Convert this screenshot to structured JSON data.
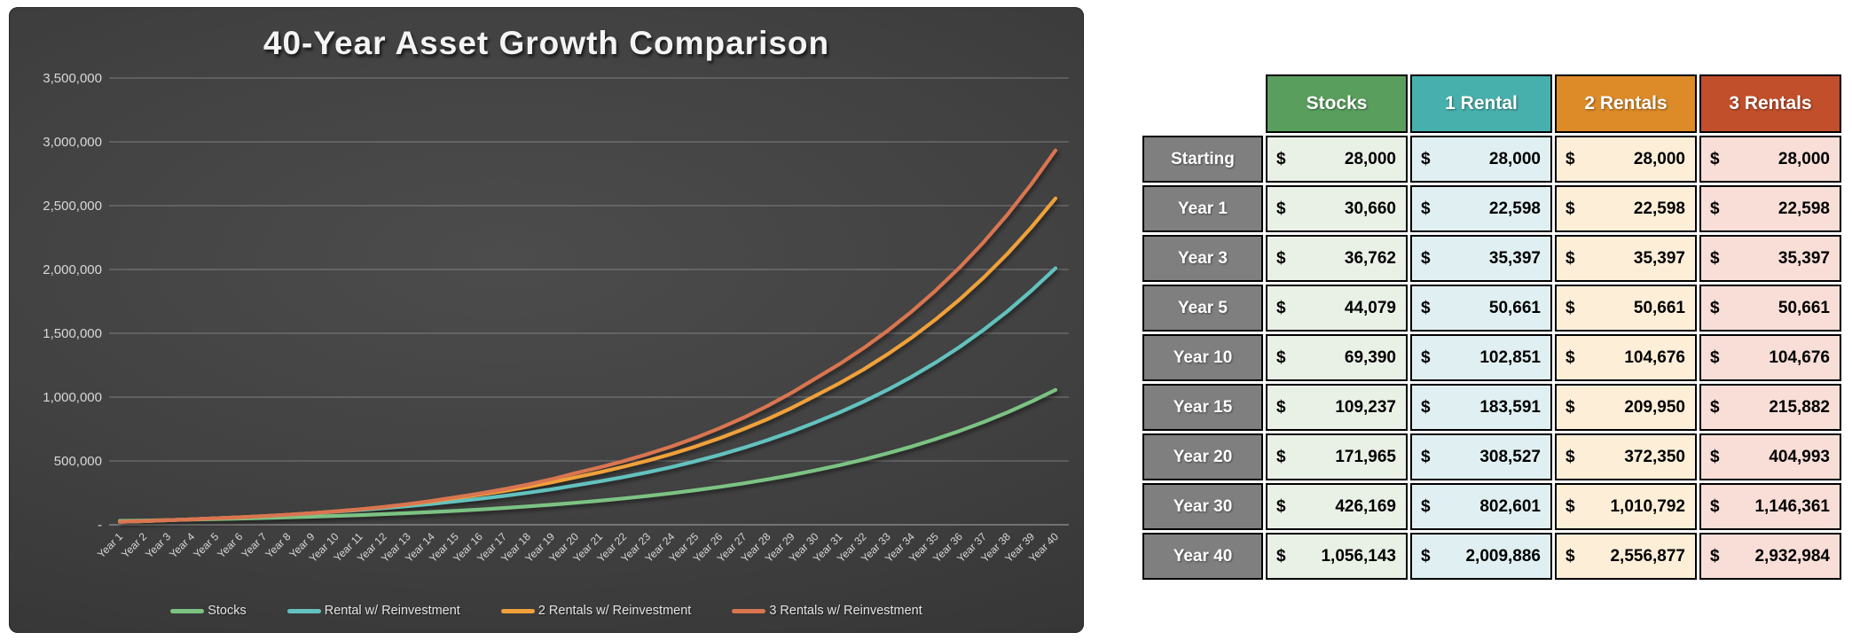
{
  "chart_data": {
    "type": "line",
    "title": "40-Year Asset Growth Comparison",
    "xlabel": "",
    "ylabel": "",
    "ylim": [
      0,
      3500000
    ],
    "grid": true,
    "legend_position": "bottom",
    "y_ticks": [
      "3,500,000",
      "3,000,000",
      "2,500,000",
      "2,000,000",
      "1,500,000",
      "1,000,000",
      "500,000",
      "-"
    ],
    "categories": [
      "Year 1",
      "Year 2",
      "Year 3",
      "Year 4",
      "Year 5",
      "Year 6",
      "Year 7",
      "Year 8",
      "Year 9",
      "Year 10",
      "Year 11",
      "Year 12",
      "Year 13",
      "Year 14",
      "Year 15",
      "Year 16",
      "Year 17",
      "Year 18",
      "Year 19",
      "Year 20",
      "Year 21",
      "Year 22",
      "Year 23",
      "Year 24",
      "Year 25",
      "Year 26",
      "Year 27",
      "Year 28",
      "Year 29",
      "Year 30",
      "Year 31",
      "Year 32",
      "Year 33",
      "Year 34",
      "Year 35",
      "Year 36",
      "Year 37",
      "Year 38",
      "Year 39",
      "Year 40"
    ],
    "series": [
      {
        "name": "Stocks",
        "color": "#7cc383",
        "values": [
          30660,
          33573,
          36762,
          40254,
          44079,
          48266,
          52851,
          57872,
          63370,
          69390,
          75982,
          83201,
          91105,
          99760,
          109237,
          119615,
          130978,
          143421,
          157046,
          171965,
          188302,
          206191,
          225779,
          247228,
          270714,
          296432,
          324593,
          355430,
          389196,
          426169,
          466655,
          510988,
          559531,
          612687,
          670892,
          734627,
          804416,
          880836,
          964515,
          1056143
        ]
      },
      {
        "name": "Rental w/ Reinvestment",
        "color": "#62c2bf",
        "values": [
          22598,
          28283,
          35397,
          42347,
          50661,
          58369,
          67249,
          77481,
          89270,
          102851,
          115488,
          129678,
          145612,
          163504,
          183591,
          203675,
          225956,
          250676,
          278100,
          308527,
          339482,
          373541,
          411017,
          452254,
          497627,
          547552,
          602487,
          662932,
          729441,
          802601,
          879774,
          964366,
          1057090,
          1158727,
          1270136,
          1392259,
          1526125,
          1672863,
          1833709,
          2009886
        ]
      },
      {
        "name": "2 Rentals w/ Reinvestment",
        "color": "#f0a13a",
        "values": [
          22598,
          28283,
          35397,
          42347,
          50661,
          58575,
          67726,
          78305,
          90537,
          104676,
          120310,
          138278,
          158930,
          182666,
          209950,
          235442,
          264028,
          296087,
          332037,
          372350,
          411455,
          454668,
          502418,
          555183,
          613490,
          677920,
          749116,
          827793,
          914732,
          1010792,
          1109098,
          1216966,
          1335326,
          1465196,
          1607698,
          1764060,
          1935628,
          2123883,
          2330448,
          2556877
        ]
      },
      {
        "name": "3 Rentals w/ Reinvestment",
        "color": "#d97550",
        "values": [
          22598,
          28283,
          35397,
          42347,
          50661,
          58575,
          67726,
          78305,
          90537,
          104676,
          120982,
          139828,
          161610,
          186785,
          215882,
          244830,
          277660,
          314893,
          357118,
          404993,
          449401,
          498678,
          553360,
          614038,
          681370,
          756082,
          838985,
          930982,
          1033067,
          1146361,
          1259285,
          1383333,
          1519598,
          1669285,
          1833717,
          2014348,
          2212767,
          2430731,
          2670172,
          2932984
        ]
      }
    ]
  },
  "chart_style": {
    "grid_color": "rgba(255,255,255,0.25)",
    "axis_color": "rgba(255,255,255,0.45)",
    "tick_color": "#d8d8d8"
  },
  "table": {
    "currency_symbol": "$",
    "columns": [
      {
        "label": "Stocks",
        "header_bg": "#5a9e5e",
        "cell_bg": "#e9f1e6"
      },
      {
        "label": "1 Rental",
        "header_bg": "#47b0ac",
        "cell_bg": "#e0f0f2"
      },
      {
        "label": "2 Rentals",
        "header_bg": "#dd8a28",
        "cell_bg": "#fdeed8"
      },
      {
        "label": "3 Rentals",
        "header_bg": "#c14f2b",
        "cell_bg": "#f8ded7"
      }
    ],
    "rows": [
      {
        "label": "Starting",
        "values": [
          "28,000",
          "28,000",
          "28,000",
          "28,000"
        ]
      },
      {
        "label": "Year 1",
        "values": [
          "30,660",
          "22,598",
          "22,598",
          "22,598"
        ]
      },
      {
        "label": "Year 3",
        "values": [
          "36,762",
          "35,397",
          "35,397",
          "35,397"
        ]
      },
      {
        "label": "Year 5",
        "values": [
          "44,079",
          "50,661",
          "50,661",
          "50,661"
        ]
      },
      {
        "label": "Year 10",
        "values": [
          "69,390",
          "102,851",
          "104,676",
          "104,676"
        ]
      },
      {
        "label": "Year 15",
        "values": [
          "109,237",
          "183,591",
          "209,950",
          "215,882"
        ]
      },
      {
        "label": "Year 20",
        "values": [
          "171,965",
          "308,527",
          "372,350",
          "404,993"
        ]
      },
      {
        "label": "Year 30",
        "values": [
          "426,169",
          "802,601",
          "1,010,792",
          "1,146,361"
        ]
      },
      {
        "label": "Year 40",
        "values": [
          "1,056,143",
          "2,009,886",
          "2,556,877",
          "2,932,984"
        ]
      }
    ]
  }
}
